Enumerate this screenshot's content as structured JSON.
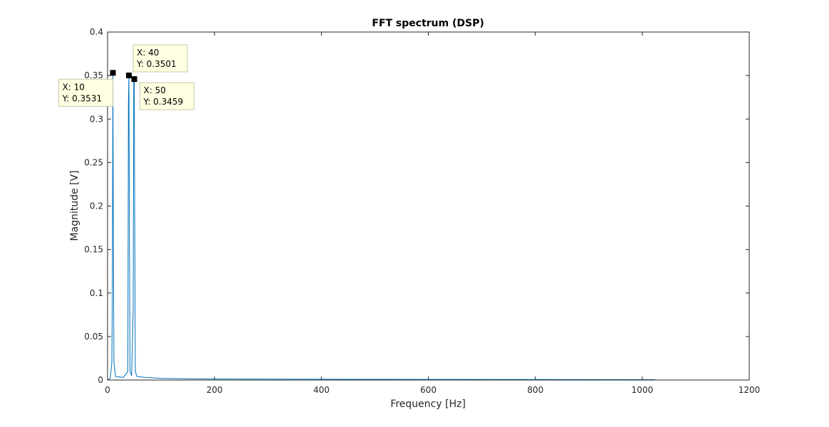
{
  "chart_data": {
    "type": "line",
    "title": "FFT spectrum (DSP)",
    "xlabel": "Frequency [Hz]",
    "ylabel": "Magnitude [V]",
    "xlim": [
      0,
      1200
    ],
    "ylim": [
      0,
      0.4
    ],
    "xticks": [
      0,
      200,
      400,
      600,
      800,
      1000,
      1200
    ],
    "xtick_labels": [
      "0",
      "200",
      "400",
      "600",
      "800",
      "1000",
      "1200"
    ],
    "yticks": [
      0,
      0.05,
      0.1,
      0.15,
      0.2,
      0.25,
      0.3,
      0.35,
      0.4
    ],
    "ytick_labels": [
      "0",
      "0.05",
      "0.1",
      "0.15",
      "0.2",
      "0.25",
      "0.3",
      "0.35",
      "0.4"
    ],
    "grid": false,
    "line_color": "#0072BD",
    "series": [
      {
        "x": [
          0,
          5,
          8,
          9,
          10,
          11,
          12,
          15,
          30,
          38,
          39,
          40,
          41,
          42,
          45,
          48,
          49,
          50,
          51,
          52,
          55,
          70,
          100,
          150,
          200,
          300,
          400,
          500,
          600,
          800,
          1000,
          1024
        ],
        "y": [
          0,
          0.002,
          0.02,
          0.11,
          0.3531,
          0.128,
          0.02,
          0.004,
          0.003,
          0.01,
          0.318,
          0.3501,
          0.15,
          0.01,
          0.005,
          0.08,
          0.3459,
          0.3459,
          0.155,
          0.01,
          0.004,
          0.003,
          0.002,
          0.0015,
          0.0012,
          0.001,
          0.0009,
          0.0008,
          0.0007,
          0.0006,
          0.0005,
          0.0004
        ]
      }
    ],
    "datatips": [
      {
        "x": 10,
        "y": 0.3531,
        "label_x": "X: 10",
        "label_y": "Y: 0.3531",
        "placement": "below-left"
      },
      {
        "x": 40,
        "y": 0.3501,
        "label_x": "X: 40",
        "label_y": "Y: 0.3501",
        "placement": "above-right"
      },
      {
        "x": 50,
        "y": 0.3459,
        "label_x": "X: 50",
        "label_y": "Y: 0.3459",
        "placement": "below-right"
      }
    ]
  }
}
